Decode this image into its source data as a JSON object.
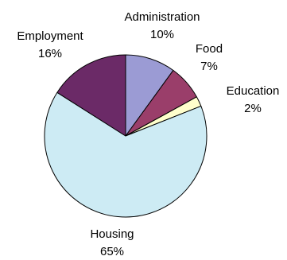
{
  "chart_data": {
    "type": "pie",
    "title": "",
    "categories": [
      "Administration",
      "Food",
      "Education",
      "Housing",
      "Employment"
    ],
    "values": [
      10,
      7,
      2,
      65,
      16
    ],
    "value_labels": [
      "10%",
      "7%",
      "2%",
      "65%",
      "16%"
    ],
    "colors": [
      "#9B9BD4",
      "#9A3E6A",
      "#FFFFCC",
      "#CDEBF4",
      "#6B2A67"
    ],
    "start_angle_deg": 0,
    "direction": "clockwise",
    "legend": "none"
  }
}
